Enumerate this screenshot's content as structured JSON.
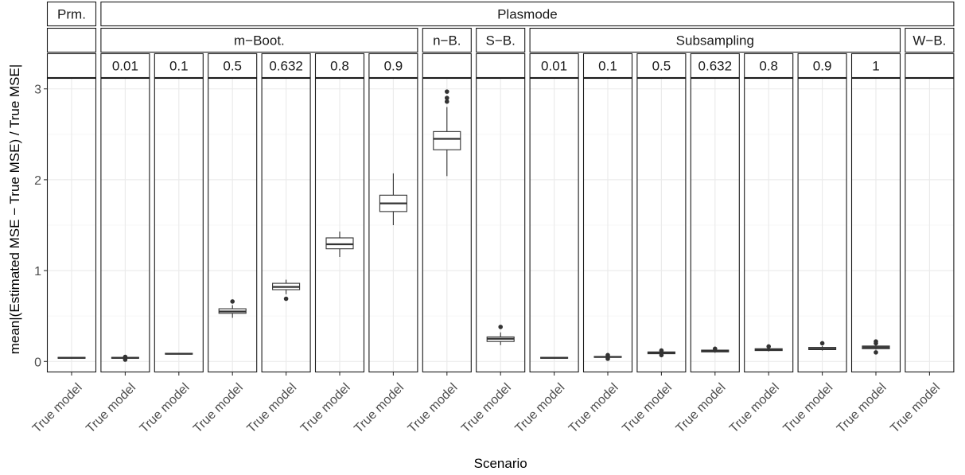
{
  "chart_data": {
    "type": "box",
    "xlabel": "Scenario",
    "ylabel": "mean|(Estimated MSE − True MSE) / True MSE|",
    "ylim": [
      -0.12,
      3.12
    ],
    "yticks": [
      0,
      1,
      2,
      3
    ],
    "grid": true,
    "category_label": "True model",
    "strip_row1": [
      {
        "label": "Prm.",
        "span": 1
      },
      {
        "label": "Plasmode",
        "span": 16
      }
    ],
    "strip_row2": [
      {
        "label": "",
        "span": 1
      },
      {
        "label": "m−Boot.",
        "span": 6
      },
      {
        "label": "n−B.",
        "span": 1
      },
      {
        "label": "S−B.",
        "span": 1
      },
      {
        "label": "Subsampling",
        "span": 7
      },
      {
        "label": "W−B.",
        "span": 1
      }
    ],
    "panels": [
      {
        "fraction": "",
        "box": {
          "min": 0.03,
          "q1": 0.035,
          "median": 0.04,
          "q3": 0.045,
          "max": 0.05
        },
        "outliers": []
      },
      {
        "fraction": "0.01",
        "box": {
          "min": 0.03,
          "q1": 0.035,
          "median": 0.04,
          "q3": 0.045,
          "max": 0.05
        },
        "outliers": [
          0.02,
          0.05
        ]
      },
      {
        "fraction": "0.1",
        "box": {
          "min": 0.08,
          "q1": 0.08,
          "median": 0.085,
          "q3": 0.09,
          "max": 0.095
        },
        "outliers": []
      },
      {
        "fraction": "0.5",
        "box": {
          "min": 0.48,
          "q1": 0.53,
          "median": 0.55,
          "q3": 0.58,
          "max": 0.62
        },
        "outliers": [
          0.66
        ]
      },
      {
        "fraction": "0.632",
        "box": {
          "min": 0.74,
          "q1": 0.79,
          "median": 0.82,
          "q3": 0.86,
          "max": 0.9
        },
        "outliers": [
          0.69
        ]
      },
      {
        "fraction": "0.8",
        "box": {
          "min": 1.15,
          "q1": 1.24,
          "median": 1.29,
          "q3": 1.36,
          "max": 1.43
        },
        "outliers": []
      },
      {
        "fraction": "0.9",
        "box": {
          "min": 1.5,
          "q1": 1.65,
          "median": 1.74,
          "q3": 1.83,
          "max": 2.07
        },
        "outliers": []
      },
      {
        "fraction": "",
        "box": {
          "min": 2.04,
          "q1": 2.33,
          "median": 2.45,
          "q3": 2.53,
          "max": 2.8
        },
        "outliers": [
          2.86,
          2.9,
          2.97
        ]
      },
      {
        "fraction": "",
        "box": {
          "min": 0.18,
          "q1": 0.22,
          "median": 0.25,
          "q3": 0.27,
          "max": 0.32
        },
        "outliers": [
          0.38
        ]
      },
      {
        "fraction": "0.01",
        "box": {
          "min": 0.03,
          "q1": 0.035,
          "median": 0.04,
          "q3": 0.045,
          "max": 0.05
        },
        "outliers": []
      },
      {
        "fraction": "0.1",
        "box": {
          "min": 0.04,
          "q1": 0.045,
          "median": 0.05,
          "q3": 0.055,
          "max": 0.065
        },
        "outliers": [
          0.03,
          0.07
        ]
      },
      {
        "fraction": "0.5",
        "box": {
          "min": 0.08,
          "q1": 0.085,
          "median": 0.095,
          "q3": 0.105,
          "max": 0.11
        },
        "outliers": [
          0.07,
          0.12
        ]
      },
      {
        "fraction": "0.632",
        "box": {
          "min": 0.095,
          "q1": 0.105,
          "median": 0.115,
          "q3": 0.125,
          "max": 0.135
        },
        "outliers": [
          0.14
        ]
      },
      {
        "fraction": "0.8",
        "box": {
          "min": 0.11,
          "q1": 0.12,
          "median": 0.13,
          "q3": 0.14,
          "max": 0.15
        },
        "outliers": [
          0.165
        ]
      },
      {
        "fraction": "0.9",
        "box": {
          "min": 0.12,
          "q1": 0.13,
          "median": 0.14,
          "q3": 0.155,
          "max": 0.17
        },
        "outliers": [
          0.2
        ]
      },
      {
        "fraction": "1",
        "box": {
          "min": 0.13,
          "q1": 0.14,
          "median": 0.155,
          "q3": 0.17,
          "max": 0.18
        },
        "outliers": [
          0.1,
          0.2,
          0.22
        ]
      },
      {
        "fraction": "",
        "box": null,
        "outliers": []
      }
    ]
  },
  "colors": {
    "strip_fill": "#ffffff",
    "border": "#1a1a1a",
    "grid_major": "#ebebeb",
    "grid_minor": "#f5f5f5",
    "box_line": "#333333",
    "tick_text": "#4d4d4d"
  }
}
